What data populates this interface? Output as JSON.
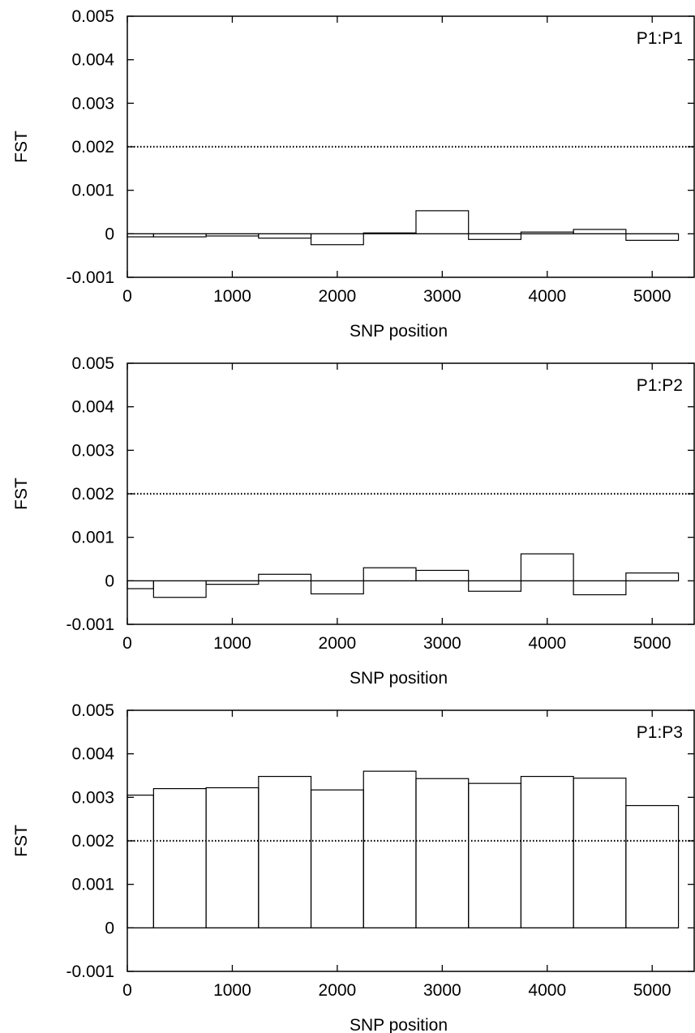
{
  "chart_data": [
    {
      "type": "bar",
      "title": "",
      "annotation": "P1:P1",
      "xlabel": "SNP position",
      "ylabel": "FST",
      "xlim": [
        0,
        5400
      ],
      "ylim": [
        -0.001,
        0.005
      ],
      "xticks": [
        "0",
        "1000",
        "2000",
        "3000",
        "4000",
        "5000"
      ],
      "yticks": [
        "-0.001",
        "0",
        "0.001",
        "0.002",
        "0.003",
        "0.004",
        "0.005"
      ],
      "threshold": 0.002,
      "bin_edges": [
        0,
        250,
        750,
        1250,
        1750,
        2250,
        2750,
        3250,
        3750,
        4250,
        4750,
        5250
      ],
      "values": [
        -7e-05,
        -7e-05,
        -5e-05,
        -0.0001,
        -0.00025,
        2e-05,
        0.00053,
        -0.00013,
        4e-05,
        0.0001,
        -0.00015
      ]
    },
    {
      "type": "bar",
      "title": "",
      "annotation": "P1:P2",
      "xlabel": "SNP position",
      "ylabel": "FST",
      "xlim": [
        0,
        5400
      ],
      "ylim": [
        -0.001,
        0.005
      ],
      "xticks": [
        "0",
        "1000",
        "2000",
        "3000",
        "4000",
        "5000"
      ],
      "yticks": [
        "-0.001",
        "0",
        "0.001",
        "0.002",
        "0.003",
        "0.004",
        "0.005"
      ],
      "threshold": 0.002,
      "bin_edges": [
        0,
        250,
        750,
        1250,
        1750,
        2250,
        2750,
        3250,
        3750,
        4250,
        4750,
        5250
      ],
      "values": [
        -0.00018,
        -0.00038,
        -8e-05,
        0.00015,
        -0.0003,
        0.0003,
        0.00024,
        -0.00024,
        0.00062,
        -0.00032,
        0.00018
      ]
    },
    {
      "type": "bar",
      "title": "",
      "annotation": "P1:P3",
      "xlabel": "SNP position",
      "ylabel": "FST",
      "xlim": [
        0,
        5400
      ],
      "ylim": [
        -0.001,
        0.005
      ],
      "xticks": [
        "0",
        "1000",
        "2000",
        "3000",
        "4000",
        "5000"
      ],
      "yticks": [
        "-0.001",
        "0",
        "0.001",
        "0.002",
        "0.003",
        "0.004",
        "0.005"
      ],
      "threshold": 0.002,
      "bin_edges": [
        0,
        250,
        750,
        1250,
        1750,
        2250,
        2750,
        3250,
        3750,
        4250,
        4750,
        5250
      ],
      "values": [
        0.00305,
        0.0032,
        0.00322,
        0.00348,
        0.00317,
        0.0036,
        0.00343,
        0.00332,
        0.00348,
        0.00344,
        0.00281
      ]
    }
  ]
}
